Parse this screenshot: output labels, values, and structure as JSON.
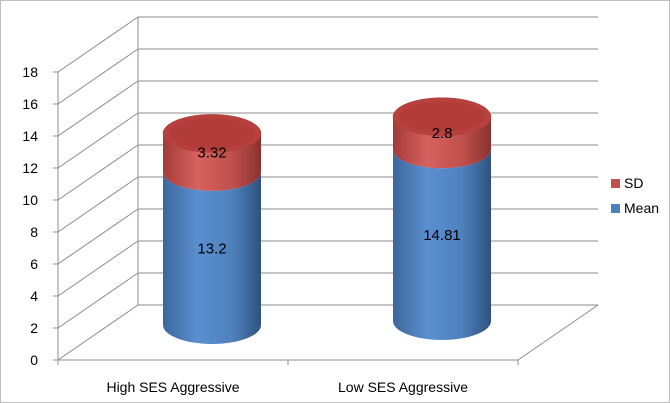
{
  "chart_data": {
    "type": "bar",
    "stacked": true,
    "style": "3d-cylinder",
    "categories": [
      "High SES Aggressive",
      "Low SES Aggressive"
    ],
    "series": [
      {
        "name": "Mean",
        "values": [
          13.2,
          14.81
        ],
        "color": "#4F81BD"
      },
      {
        "name": "SD",
        "values": [
          3.32,
          2.8
        ],
        "color": "#C0504D"
      }
    ],
    "data_labels": [
      [
        "13.2",
        "3.32"
      ],
      [
        "14.81",
        "2.8"
      ]
    ],
    "y_ticks": [
      "0",
      "2",
      "4",
      "6",
      "8",
      "10",
      "12",
      "14",
      "16",
      "18"
    ],
    "ylim": [
      0,
      18
    ],
    "grid": true,
    "legend": {
      "position": "right",
      "entries": [
        "SD",
        "Mean"
      ]
    }
  }
}
